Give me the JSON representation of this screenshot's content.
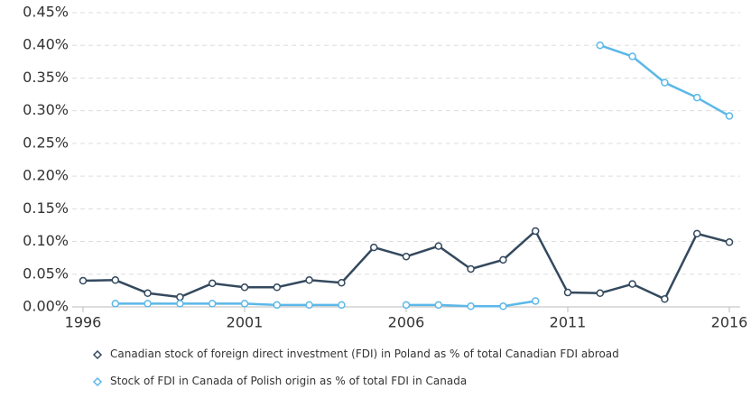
{
  "chart_data": {
    "type": "line",
    "x": [
      1996,
      1997,
      1998,
      1999,
      2000,
      2001,
      2002,
      2003,
      2004,
      2005,
      2006,
      2007,
      2008,
      2009,
      2010,
      2011,
      2012,
      2013,
      2014,
      2015,
      2016
    ],
    "series": [
      {
        "name": "Canadian stock of foreign direct investment (FDI) in Poland as % of total Canadian FDI abroad",
        "color": "#34495e",
        "values": [
          0.04,
          0.041,
          0.021,
          0.015,
          0.036,
          0.03,
          0.03,
          0.041,
          0.037,
          0.091,
          0.077,
          0.093,
          0.058,
          0.072,
          0.116,
          0.022,
          0.021,
          0.035,
          0.012,
          0.112,
          0.099
        ]
      },
      {
        "name": "Stock of FDI in Canada of Polish origin as % of total FDI in Canada",
        "color": "#5bb8e8",
        "values": [
          null,
          0.005,
          0.005,
          0.005,
          0.005,
          0.005,
          0.003,
          0.003,
          0.003,
          null,
          0.003,
          0.003,
          0.001,
          0.001,
          0.009,
          null,
          0.4,
          0.383,
          0.343,
          0.32,
          0.292
        ]
      }
    ],
    "xlim": [
      1996,
      2016
    ],
    "xticks": [
      1996,
      2001,
      2006,
      2011,
      2016
    ],
    "ylim": [
      0,
      0.45
    ],
    "yticks": [
      {
        "value": 0,
        "label": "0.00%"
      },
      {
        "value": 0.05,
        "label": "0.05%"
      },
      {
        "value": 0.1,
        "label": "0.10%"
      },
      {
        "value": 0.15,
        "label": "0.15%"
      },
      {
        "value": 0.2,
        "label": "0.20%"
      },
      {
        "value": 0.25,
        "label": "0.25%"
      },
      {
        "value": 0.3,
        "label": "0.30%"
      },
      {
        "value": 0.35,
        "label": "0.35%"
      },
      {
        "value": 0.4,
        "label": "0.40%"
      },
      {
        "value": 0.45,
        "label": "0.45%"
      }
    ],
    "grid": true
  }
}
